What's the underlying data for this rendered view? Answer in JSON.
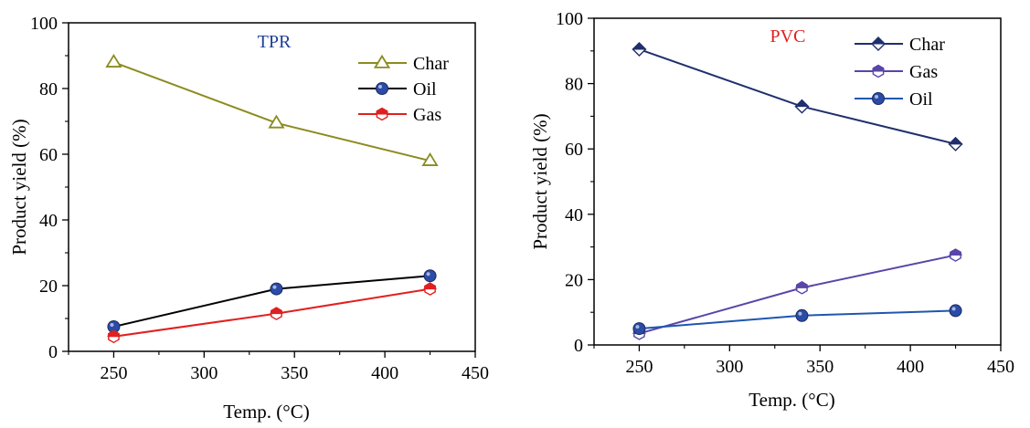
{
  "chart_data": [
    {
      "type": "line",
      "title": "TPR",
      "title_color": "#1f3f9a",
      "xlabel": "Temp. (°C)",
      "ylabel": "Product yield (%)",
      "xlim": [
        225,
        450
      ],
      "ylim": [
        0,
        100
      ],
      "x_ticks": [
        "250",
        "300",
        "350",
        "400",
        "450"
      ],
      "y_ticks": [
        "0",
        "20",
        "40",
        "60",
        "80",
        "100"
      ],
      "legend_position": "top-right",
      "series": [
        {
          "name": "Char",
          "color": "#8b8b1f",
          "marker": "triangle-open",
          "x": [
            250,
            340,
            425
          ],
          "values": [
            88,
            69.5,
            58
          ]
        },
        {
          "name": "Oil",
          "color": "#000000",
          "marker_color": "#2b4ba8",
          "marker": "circle-filled",
          "x": [
            250,
            340,
            425
          ],
          "values": [
            7.5,
            19,
            23
          ]
        },
        {
          "name": "Gas",
          "color": "#e02020",
          "marker": "hexagon-half",
          "x": [
            250,
            340,
            425
          ],
          "values": [
            4.5,
            11.5,
            19
          ]
        }
      ]
    },
    {
      "type": "line",
      "title": "PVC",
      "title_color": "#e02020",
      "xlabel": "Temp. (°C)",
      "ylabel": "Product yield (%)",
      "xlim": [
        225,
        450
      ],
      "ylim": [
        0,
        100
      ],
      "x_ticks": [
        "250",
        "300",
        "350",
        "400",
        "450"
      ],
      "y_ticks": [
        "0",
        "20",
        "40",
        "60",
        "80",
        "100"
      ],
      "legend_position": "top-right",
      "series": [
        {
          "name": "Char",
          "color": "#1f2f6e",
          "marker": "diamond-half",
          "x": [
            250,
            340,
            425
          ],
          "values": [
            90.5,
            73,
            61.5
          ]
        },
        {
          "name": "Gas",
          "color": "#5a45a8",
          "marker": "hexagon-half",
          "x": [
            250,
            340,
            425
          ],
          "values": [
            3.5,
            17.5,
            27.5
          ]
        },
        {
          "name": "Oil",
          "color": "#1f56b0",
          "marker_color": "#2b4ba8",
          "marker": "circle-filled",
          "x": [
            250,
            340,
            425
          ],
          "values": [
            5,
            9,
            10.5
          ]
        }
      ]
    }
  ]
}
